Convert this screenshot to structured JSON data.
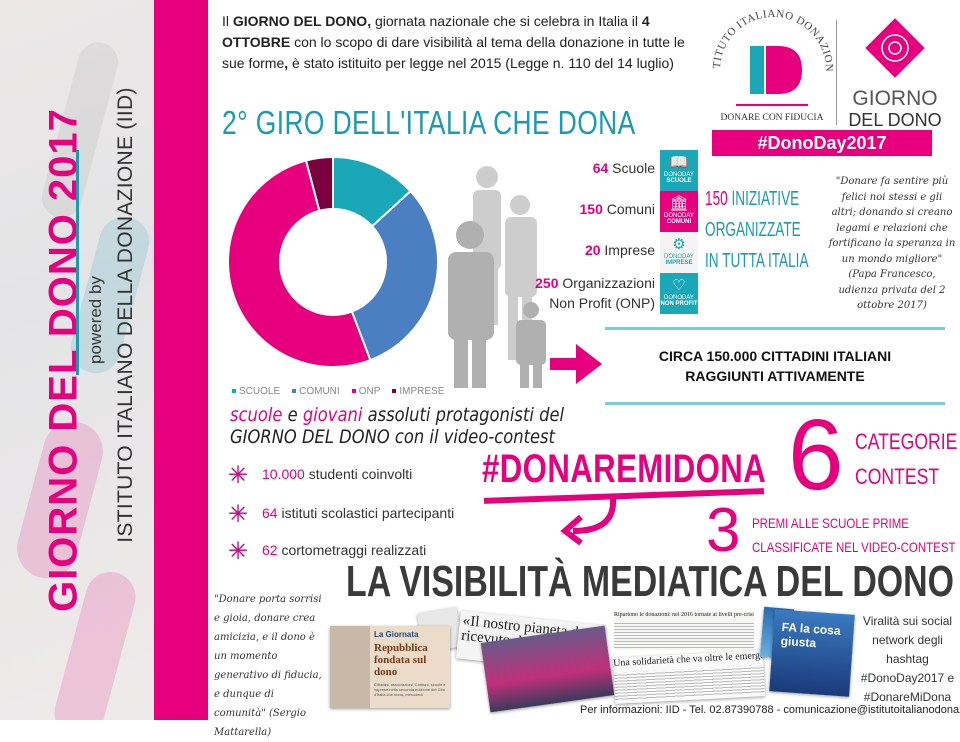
{
  "sidebar": {
    "title": "GIORNO DEL DONO 2017",
    "powered_by": "powered by",
    "institute": "ISTITUTO ITALIANO DELLA DONAZIONE (IID)"
  },
  "intro": {
    "p1": "Il ",
    "b1": "GIORNO DEL DONO,",
    "p2": " giornata nazionale che si celebra in Italia il ",
    "b2": "4 OTTOBRE",
    "p3": " con lo scopo di dare visibilità al tema della donazione in tutte le sue forme",
    "b3": ",",
    "p4": " è stato istituito per legge nel 2015 (Legge n. 110 del 14 luglio)"
  },
  "logo": {
    "arc": "ISTITUTO ITALIANO DONAZIONE",
    "mono": "ID",
    "tagline": "DONARE CON FIDUCIA",
    "brand1": "GIORNO",
    "brand2": "DEL DONO",
    "hashtag": "#DonoDay2017"
  },
  "section_title": "2° GIRO DELL'ITALIA CHE DONA",
  "chart_data": {
    "type": "pie",
    "donut": true,
    "categories": [
      "SCUOLE",
      "COMUNI",
      "ONP",
      "IMPRESE"
    ],
    "values": [
      64,
      150,
      250,
      20
    ],
    "colors": [
      "#1aa8b8",
      "#4a7fc1",
      "#e6007e",
      "#7a0040"
    ],
    "legend": "bottom"
  },
  "stats": [
    {
      "num": "64",
      "label": " Scuole",
      "tile": "SCUOLE",
      "icon": "book-icon",
      "color": "#1aa8b8"
    },
    {
      "num": "150",
      "label": " Comuni",
      "tile": "COMUNI",
      "icon": "building-icon",
      "color": "#e6007e"
    },
    {
      "num": "20",
      "label": " Imprese",
      "tile": "IMPRESE",
      "icon": "gears-icon",
      "color": "#ffffff"
    },
    {
      "num": "250",
      "label": " Organizzazioni",
      "label2": "Non Profit (ONP)",
      "tile": "NON PROFIT",
      "icon": "heart-icon",
      "color": "#1aa8b8"
    }
  ],
  "tile_prefix": "DONODAY",
  "iniziative": {
    "num": "150",
    "l1": " INIZIATIVE",
    "l2": "ORGANIZZATE",
    "l3": "IN TUTTA ITALIA"
  },
  "papa_quote": "\"Donare fa sentire più felici noi stessi e gli altri; donando si creano legami e relazioni che fortificano la speranza in un mondo migliore\" (Papa Francesco, udienza privata del 2 ottobre 2017)",
  "circa": {
    "l1": "CIRCA 150.000 CITTADINI ITALIANI",
    "l2": "RAGGIUNTI ATTIVAMENTE"
  },
  "video_contest": {
    "w1": "scuole",
    "w2": " e ",
    "w3": "giovani",
    "w4": " assoluti protagonisti del",
    "l2": "GIORNO DEL DONO con il video-contest"
  },
  "bullets": [
    {
      "num": "10.000",
      "text": " studenti coinvolti"
    },
    {
      "num": "64",
      "text": " istituti scolastici partecipanti"
    },
    {
      "num": "62",
      "text": " cortometraggi realizzati"
    }
  ],
  "hashtag_contest": "#DONAREMIDONA",
  "categories": {
    "num": "6",
    "l1": "CATEGORIE",
    "l2": "CONTEST"
  },
  "prizes": {
    "num": "3",
    "l1": "PREMI ALLE SCUOLE PRIME",
    "l2": "CLASSIFICATE NEL VIDEO-CONTEST"
  },
  "media_title": "LA VISIBILITÀ MEDIATICA DEL DONO",
  "mattarella_quote": "\"Donare porta sorrisi e gioia, donare crea amicizia, e il dono è un momento generativo di fiducia, e dunque di comunità\" (Sergio Mattarella)",
  "press": {
    "a_head": "La Giornata",
    "a_title": "Repubblica fondata sul dono",
    "a_body": "Cittadini, associazioni, Comuni, scuole e imprese nella seconda edizione del Giro d'Italia che dona, mercoledì",
    "b_title": "«Il nostro pianeta dono ricevuto da con",
    "c_head": "Ripartono le donazioni: nel 2016 tornate ai livelli pre-crisi",
    "d_title": "Una solidarietà che va oltre le emergenze",
    "e_title": "FA la cosa giusta"
  },
  "virality": "Viralità sui social network degli hashtag #DonoDay2017 e #DonareMiDona",
  "footer": "Per informazioni: IID - Tel. 02.87390788 - comunicazione@istitutoitalianodonazione.it"
}
